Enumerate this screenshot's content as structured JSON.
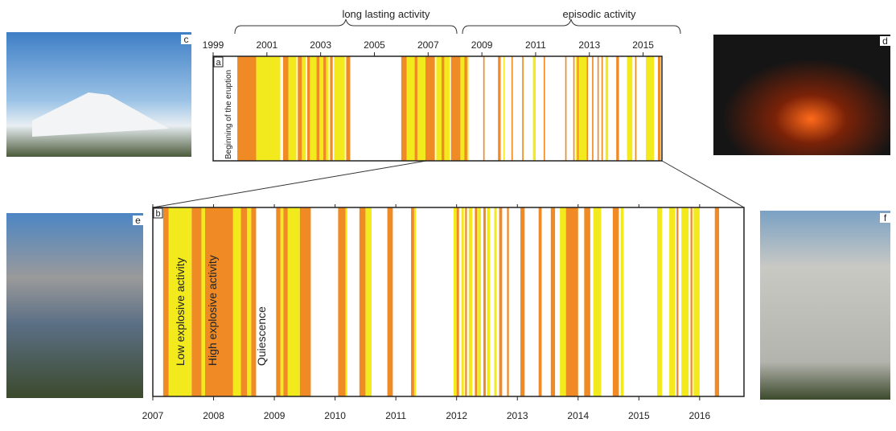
{
  "header": {
    "left_label": "long lasting activity",
    "right_label": "episodic activity"
  },
  "photos": [
    {
      "label": "c"
    },
    {
      "label": "d"
    },
    {
      "label": "e"
    },
    {
      "label": "f"
    }
  ],
  "colors": {
    "high": "#f08a24",
    "low": "#f2ea1c"
  },
  "panel_a": {
    "label": "a",
    "annotation": "Beginning of the eruption",
    "xlim": [
      1999,
      2015.7
    ],
    "xticks": [
      1999,
      2001,
      2003,
      2005,
      2007,
      2009,
      2011,
      2013,
      2015
    ],
    "low_bands": [
      [
        2000.6,
        2001.5
      ],
      [
        2001.8,
        2002.1
      ],
      [
        2002.3,
        2002.45
      ],
      [
        2002.6,
        2003.3
      ],
      [
        2003.5,
        2003.9
      ],
      [
        2006.2,
        2006.9
      ],
      [
        2007.3,
        2007.8
      ],
      [
        2008.2,
        2008.5
      ],
      [
        2009.8,
        2009.85
      ],
      [
        2010.9,
        2011.0
      ],
      [
        2012.5,
        2012.9
      ],
      [
        2013.6,
        2013.7
      ],
      [
        2014.4,
        2014.6
      ],
      [
        2015.1,
        2015.4
      ]
    ],
    "high_bands": [
      [
        1999.9,
        2000.6
      ],
      [
        2001.6,
        2001.8
      ],
      [
        2002.15,
        2002.3
      ],
      [
        2002.5,
        2002.6
      ],
      [
        2002.85,
        2002.95
      ],
      [
        2003.1,
        2003.2
      ],
      [
        2003.35,
        2003.45
      ],
      [
        2003.95,
        2004.1
      ],
      [
        2006.0,
        2006.2
      ],
      [
        2006.5,
        2006.6
      ],
      [
        2006.9,
        2007.25
      ],
      [
        2007.5,
        2007.6
      ],
      [
        2007.85,
        2008.2
      ],
      [
        2008.35,
        2008.45
      ],
      [
        2009.05,
        2009.1
      ],
      [
        2009.6,
        2009.7
      ],
      [
        2010.1,
        2010.15
      ],
      [
        2010.5,
        2010.55
      ],
      [
        2011.3,
        2011.35
      ],
      [
        2012.1,
        2012.15
      ],
      [
        2012.4,
        2012.45
      ],
      [
        2012.55,
        2012.6
      ],
      [
        2012.9,
        2012.95
      ],
      [
        2013.1,
        2013.15
      ],
      [
        2013.3,
        2013.35
      ],
      [
        2013.45,
        2013.5
      ],
      [
        2014.0,
        2014.1
      ],
      [
        2014.7,
        2014.75
      ],
      [
        2015.55,
        2015.65
      ]
    ]
  },
  "panel_b": {
    "label": "b",
    "annotations": [
      "Low explosive activity",
      "High explosive activity",
      "Quiescence"
    ],
    "xlim": [
      2007,
      2016.73
    ],
    "xticks": [
      2007,
      2008,
      2009,
      2010,
      2011,
      2012,
      2013,
      2014,
      2015,
      2016
    ],
    "low_bands": [
      [
        2007.26,
        2007.64
      ],
      [
        2007.8,
        2007.86
      ],
      [
        2008.32,
        2008.45
      ],
      [
        2008.55,
        2008.62
      ],
      [
        2009.1,
        2009.15
      ],
      [
        2009.22,
        2009.42
      ],
      [
        2010.17,
        2010.2
      ],
      [
        2010.5,
        2010.6
      ],
      [
        2011.3,
        2011.33
      ],
      [
        2011.95,
        2012.0
      ],
      [
        2012.08,
        2012.12
      ],
      [
        2012.2,
        2012.26
      ],
      [
        2012.35,
        2012.4
      ],
      [
        2012.5,
        2012.55
      ],
      [
        2012.62,
        2012.66
      ],
      [
        2013.7,
        2013.8
      ],
      [
        2014.25,
        2014.38
      ],
      [
        2014.7,
        2014.75
      ],
      [
        2015.3,
        2015.38
      ],
      [
        2015.5,
        2015.6
      ],
      [
        2015.7,
        2015.82
      ],
      [
        2015.9,
        2016.0
      ]
    ],
    "high_bands": [
      [
        2007.17,
        2007.26
      ],
      [
        2007.64,
        2007.8
      ],
      [
        2007.86,
        2008.32
      ],
      [
        2008.45,
        2008.55
      ],
      [
        2008.62,
        2008.7
      ],
      [
        2009.03,
        2009.1
      ],
      [
        2009.15,
        2009.22
      ],
      [
        2009.42,
        2009.6
      ],
      [
        2010.05,
        2010.17
      ],
      [
        2010.4,
        2010.5
      ],
      [
        2010.86,
        2010.95
      ],
      [
        2011.25,
        2011.3
      ],
      [
        2012.0,
        2012.04
      ],
      [
        2012.14,
        2012.17
      ],
      [
        2012.3,
        2012.34
      ],
      [
        2012.44,
        2012.48
      ],
      [
        2012.7,
        2012.75
      ],
      [
        2012.83,
        2012.86
      ],
      [
        2013.05,
        2013.12
      ],
      [
        2013.35,
        2013.4
      ],
      [
        2013.55,
        2013.62
      ],
      [
        2013.8,
        2014.0
      ],
      [
        2014.1,
        2014.2
      ],
      [
        2014.57,
        2014.67
      ],
      [
        2015.62,
        2015.65
      ],
      [
        2015.85,
        2015.88
      ],
      [
        2016.25,
        2016.32
      ]
    ]
  }
}
